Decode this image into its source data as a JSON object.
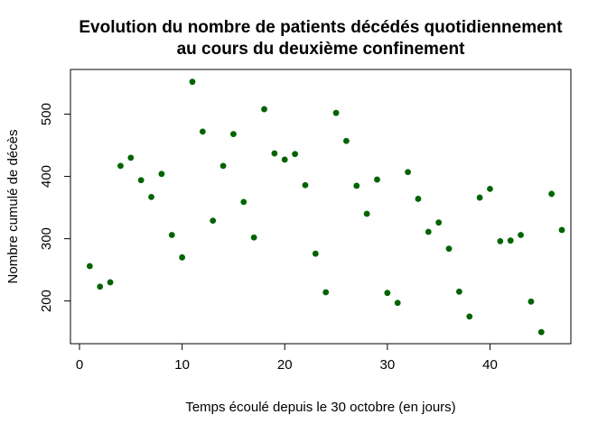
{
  "chart_data": {
    "type": "scatter",
    "title_lines": [
      "Evolution du nombre de patients décédés quotidiennement",
      "au cours du deuxième confinement"
    ],
    "xlabel": "Temps écoulé depuis le 30 octobre (en jours)",
    "ylabel": "Nombre cumulé de décès",
    "xlim": [
      -0.88,
      47.88
    ],
    "ylim": [
      131.4,
      571.8
    ],
    "xticks": [
      0,
      10,
      20,
      30,
      40
    ],
    "yticks": [
      200,
      300,
      400,
      500
    ],
    "grid": false,
    "marker_color": "#006400",
    "x": [
      1,
      2,
      3,
      4,
      5,
      6,
      7,
      8,
      9,
      10,
      11,
      12,
      13,
      14,
      15,
      16,
      17,
      18,
      19,
      20,
      21,
      22,
      23,
      24,
      25,
      26,
      27,
      28,
      29,
      30,
      31,
      32,
      33,
      34,
      35,
      36,
      37,
      38,
      39,
      40,
      41,
      42,
      43,
      44,
      45,
      46,
      47
    ],
    "y": [
      256,
      223,
      230,
      417,
      430,
      394,
      367,
      404,
      306,
      270,
      552,
      472,
      329,
      417,
      468,
      359,
      302,
      508,
      437,
      427,
      436,
      386,
      276,
      214,
      502,
      457,
      385,
      340,
      395,
      213,
      197,
      407,
      364,
      311,
      326,
      284,
      215,
      175,
      366,
      380,
      296,
      297,
      306,
      199,
      150,
      372,
      314
    ]
  }
}
